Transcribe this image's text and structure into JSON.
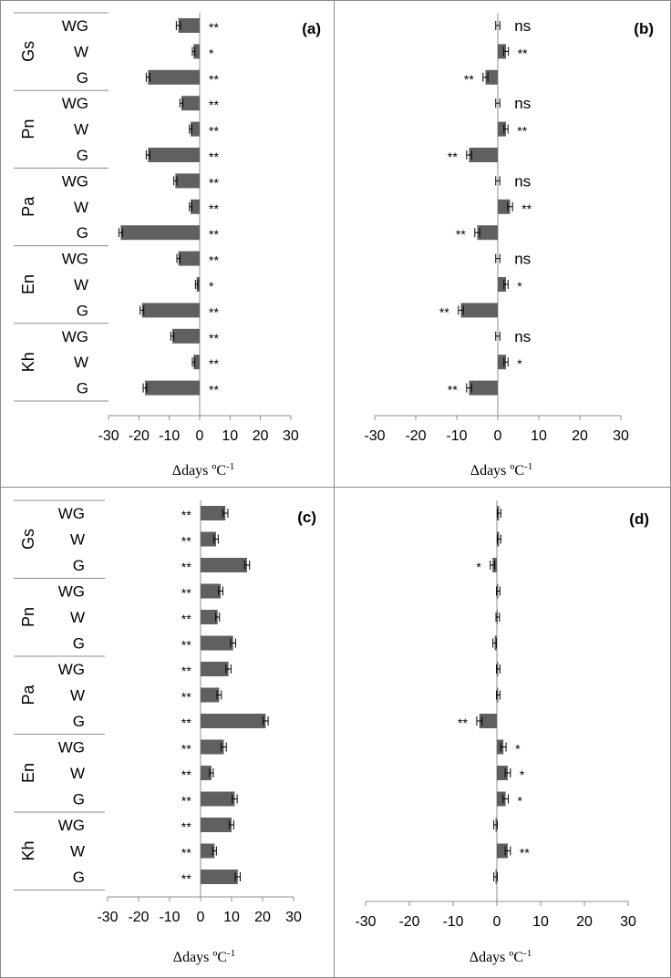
{
  "chart_data": [
    {
      "type": "bar",
      "orientation": "horizontal",
      "panel_label": "(a)",
      "groups": [
        "Gs",
        "Pn",
        "Pa",
        "En",
        "Kh"
      ],
      "subcategories": [
        "WG",
        "W",
        "G"
      ],
      "values": [
        [
          -7,
          -2,
          -17
        ],
        [
          -6,
          -3,
          -17
        ],
        [
          -8,
          -3,
          -26
        ],
        [
          -7,
          -1,
          -19
        ],
        [
          -9,
          -2,
          -18
        ]
      ],
      "errors": [
        [
          0.7,
          0.4,
          0.6
        ],
        [
          0.5,
          0.4,
          0.6
        ],
        [
          0.5,
          0.4,
          0.6
        ],
        [
          0.5,
          0.4,
          0.6
        ],
        [
          0.5,
          0.4,
          0.6
        ]
      ],
      "significance": [
        [
          "**",
          "*",
          "**"
        ],
        [
          "**",
          "**",
          "**"
        ],
        [
          "**",
          "**",
          "**"
        ],
        [
          "**",
          "*",
          "**"
        ],
        [
          "**",
          "**",
          "**"
        ]
      ],
      "xlim": [
        -30,
        30
      ],
      "xticks": [
        "-30",
        "-20",
        "-10",
        "0",
        "10",
        "20",
        "30"
      ],
      "xlabel_main": "Δdays ºC",
      "xlabel_sup": "-1"
    },
    {
      "type": "bar",
      "orientation": "horizontal",
      "panel_label": "(b)",
      "groups": [
        "Gs",
        "Pn",
        "Pa",
        "En",
        "Kh"
      ],
      "subcategories": [
        "WG",
        "W",
        "G"
      ],
      "values": [
        [
          0,
          2,
          -3
        ],
        [
          0,
          2,
          -7
        ],
        [
          0,
          3,
          -5
        ],
        [
          0,
          2,
          -9
        ],
        [
          0,
          2,
          -7
        ]
      ],
      "errors": [
        [
          0.5,
          0.6,
          0.6
        ],
        [
          0.5,
          0.5,
          0.6
        ],
        [
          0.5,
          0.6,
          0.6
        ],
        [
          0.5,
          0.5,
          0.6
        ],
        [
          0.5,
          0.5,
          0.6
        ]
      ],
      "significance": [
        [
          "ns",
          "**",
          "**"
        ],
        [
          "ns",
          "**",
          "**"
        ],
        [
          "ns",
          "**",
          "**"
        ],
        [
          "ns",
          "*",
          "**"
        ],
        [
          "ns",
          "*",
          "**"
        ]
      ],
      "xlim": [
        -30,
        30
      ],
      "xticks": [
        "-30",
        "-20",
        "-10",
        "0",
        "10",
        "20",
        "30"
      ],
      "xlabel_main": "Δdays ºC",
      "xlabel_sup": "-1"
    },
    {
      "type": "bar",
      "orientation": "horizontal",
      "panel_label": "(c)",
      "groups": [
        "Gs",
        "Pn",
        "Pa",
        "En",
        "Kh"
      ],
      "subcategories": [
        "WG",
        "W",
        "G"
      ],
      "values": [
        [
          8,
          5,
          15
        ],
        [
          6.5,
          5.5,
          10.5
        ],
        [
          9,
          6,
          21
        ],
        [
          7.5,
          3.5,
          11
        ],
        [
          10,
          4.5,
          12
        ]
      ],
      "errors": [
        [
          0.8,
          0.7,
          0.8
        ],
        [
          0.7,
          0.6,
          0.8
        ],
        [
          0.8,
          0.7,
          0.8
        ],
        [
          0.8,
          0.6,
          0.8
        ],
        [
          0.7,
          0.6,
          0.8
        ]
      ],
      "significance": [
        [
          "**",
          "**",
          "**"
        ],
        [
          "**",
          "**",
          "**"
        ],
        [
          "**",
          "**",
          "**"
        ],
        [
          "**",
          "**",
          "**"
        ],
        [
          "**",
          "**",
          "**"
        ]
      ],
      "significance_side": "left",
      "xlim": [
        -30,
        30
      ],
      "xticks": [
        "-30",
        "-20",
        "-10",
        "0",
        "10",
        "20",
        "30"
      ],
      "xlabel_main": "Δdays ºC",
      "xlabel_sup": "-1"
    },
    {
      "type": "bar",
      "orientation": "horizontal",
      "panel_label": "(d)",
      "groups": [
        "Gs",
        "Pn",
        "Pa",
        "En",
        "Kh"
      ],
      "subcategories": [
        "WG",
        "W",
        "G"
      ],
      "values": [
        [
          0.5,
          0.5,
          -1
        ],
        [
          0.3,
          0.2,
          -0.5
        ],
        [
          0.3,
          0.3,
          -4
        ],
        [
          1.5,
          2.5,
          2
        ],
        [
          -0.3,
          2.5,
          -0.3
        ]
      ],
      "errors": [
        [
          0.4,
          0.4,
          0.5
        ],
        [
          0.4,
          0.4,
          0.4
        ],
        [
          0.4,
          0.4,
          0.6
        ],
        [
          0.6,
          0.6,
          0.6
        ],
        [
          0.4,
          0.6,
          0.4
        ]
      ],
      "significance": [
        [
          "",
          "",
          "*"
        ],
        [
          "",
          "",
          ""
        ],
        [
          "",
          "",
          "**"
        ],
        [
          "*",
          "*",
          "*"
        ],
        [
          "",
          "**",
          ""
        ]
      ],
      "xlim": [
        -30,
        30
      ],
      "xticks": [
        "-30",
        "-20",
        "-10",
        "0",
        "10",
        "20",
        "30"
      ],
      "xlabel_main": "Δdays ºC",
      "xlabel_sup": "-1"
    }
  ],
  "colors": {
    "bar": "#606060",
    "axis": "#8c8c8c",
    "text": "#000000"
  }
}
